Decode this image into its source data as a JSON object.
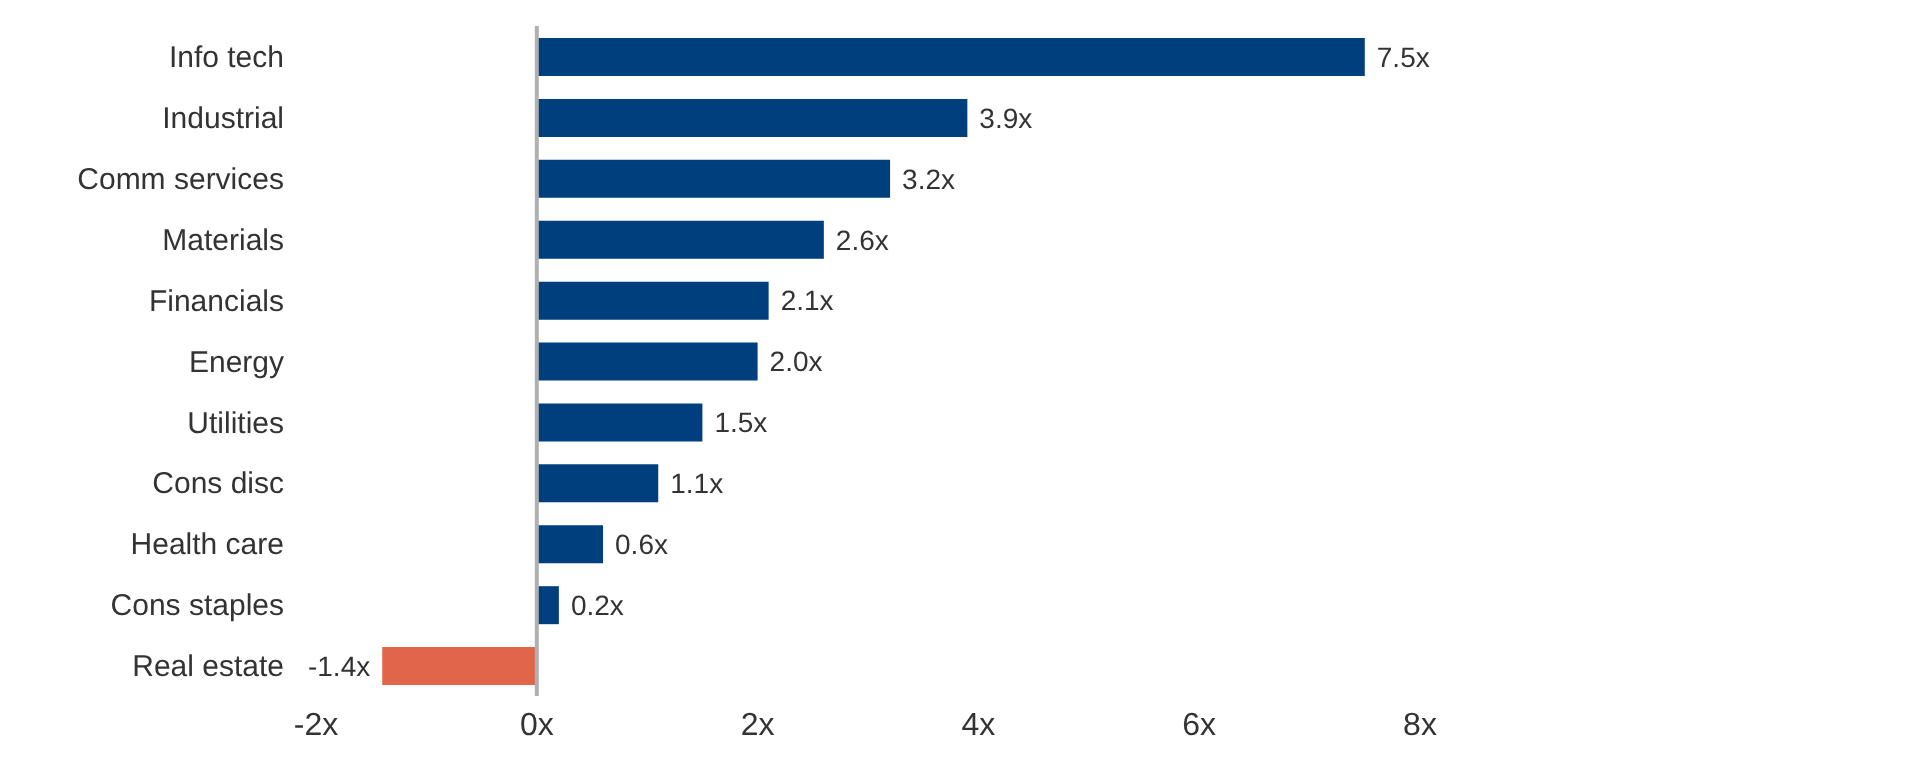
{
  "chart_data": {
    "type": "bar",
    "orientation": "horizontal",
    "categories": [
      "Info tech",
      "Industrial",
      "Comm services",
      "Materials",
      "Financials",
      "Energy",
      "Utilities",
      "Cons disc",
      "Health care",
      "Cons staples",
      "Real estate"
    ],
    "values": [
      7.5,
      3.9,
      3.2,
      2.6,
      2.1,
      2.0,
      1.5,
      1.1,
      0.6,
      0.2,
      -1.4
    ],
    "value_labels": [
      "7.5x",
      "3.9x",
      "3.2x",
      "2.6x",
      "2.1x",
      "2.0x",
      "1.5x",
      "1.1x",
      "0.6x",
      "0.2x",
      "-1.4x"
    ],
    "colors": [
      "#003f7d",
      "#003f7d",
      "#003f7d",
      "#003f7d",
      "#003f7d",
      "#003f7d",
      "#003f7d",
      "#003f7d",
      "#003f7d",
      "#003f7d",
      "#e0654a"
    ],
    "xlim": [
      -2,
      8
    ],
    "xticks": [
      {
        "value": -2,
        "label": "-2x"
      },
      {
        "value": 0,
        "label": "0x"
      },
      {
        "value": 2,
        "label": "2x"
      },
      {
        "value": 4,
        "label": "4x"
      },
      {
        "value": 6,
        "label": "6x"
      },
      {
        "value": 8,
        "label": "8x"
      }
    ],
    "ref_lines": [
      {
        "axis": "x",
        "value": 0,
        "color": "#b0b0b0"
      }
    ],
    "grid": false
  }
}
